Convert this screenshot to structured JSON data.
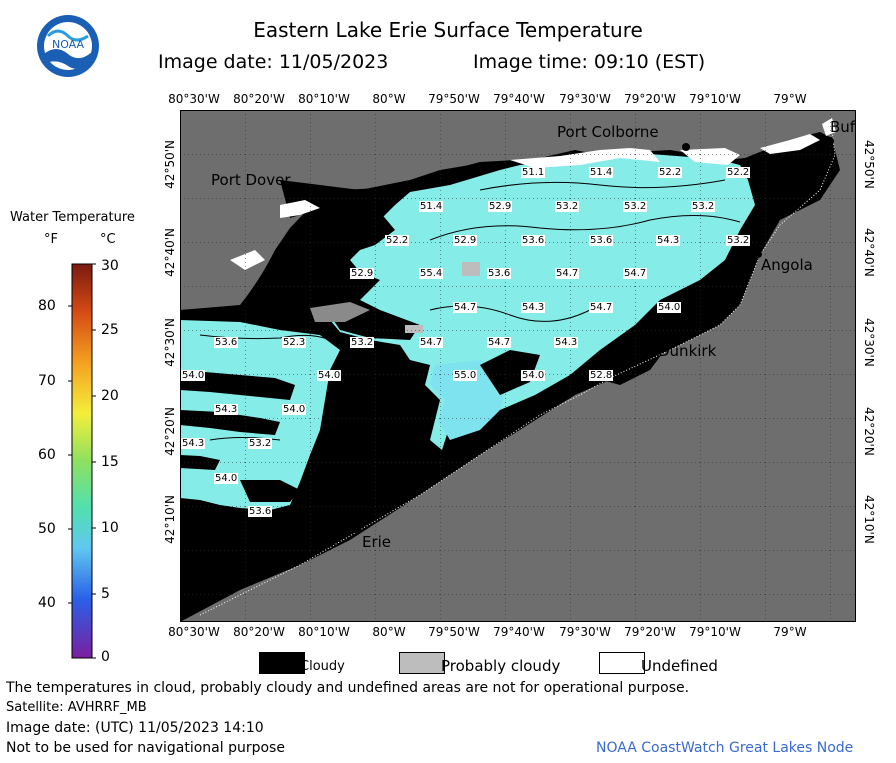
{
  "header": {
    "title": "Eastern Lake Erie Surface Temperature",
    "image_date": "Image date: 11/05/2023",
    "image_time": "Image time: 09:10 (EST)"
  },
  "logo": {
    "text": "NOAA"
  },
  "axes": {
    "lon_labels": [
      "80°30'W",
      "80°20'W",
      "80°10'W",
      "80°W",
      "79°50'W",
      "79°40'W",
      "79°30'W",
      "79°20'W",
      "79°10'W",
      "79°W"
    ],
    "lat_labels": [
      "42°50'N",
      "42°40'N",
      "42°30'N",
      "42°20'N",
      "42°10'N"
    ]
  },
  "cities": {
    "port_colborne": "Port Colborne",
    "buffalo": "Buf",
    "port_dover": "Port Dover",
    "angola": "Angola",
    "dunkirk": "Dunkirk",
    "erie": "Erie"
  },
  "temperature_labels": [
    "51.1",
    "51.4",
    "52.2",
    "52.2",
    "51.4",
    "52.9",
    "53.2",
    "53.2",
    "53.2",
    "52.2",
    "52.9",
    "53.6",
    "53.6",
    "54.3",
    "53.2",
    "52.9",
    "55.4",
    "53.6",
    "54.7",
    "54.7",
    "54.7",
    "54.3",
    "54.7",
    "54.0",
    "53.6",
    "52.3",
    "53.2",
    "54.7",
    "54.7",
    "54.3",
    "54.0",
    "54.0",
    "55.0",
    "54.0",
    "52.8",
    "54.3",
    "54.0",
    "54.3",
    "53.2",
    "54.0",
    "53.6"
  ],
  "colorbar": {
    "title": "Water Temperature",
    "unit_f": "°F",
    "unit_c": "°C",
    "f_ticks": [
      "80",
      "70",
      "60",
      "50",
      "40"
    ],
    "c_ticks": [
      "30",
      "25",
      "20",
      "15",
      "10",
      "5",
      "0"
    ]
  },
  "legend": {
    "cloudy": "Cloudy",
    "probably_cloudy": "Probably cloudy",
    "undefined": "Undefined"
  },
  "footer": {
    "disclaimer": "The temperatures in cloud, probably cloudy and undefined areas are not for operational purpose.",
    "satellite": "Satellite: AVHRRF_MB",
    "utc_date": "Image date: (UTC) 11/05/2023  14:10",
    "nav_note": "Not to be used for navigational purpose",
    "credit": "NOAA CoastWatch Great Lakes Node"
  },
  "colors": {
    "land": "#6e6e6e",
    "cloud": "#000000",
    "water_warm": "#7ff0e6",
    "water_cool": "#8fe8f2",
    "probably_cloudy": "#bdbdbd",
    "credit": "#3a6ad0"
  }
}
